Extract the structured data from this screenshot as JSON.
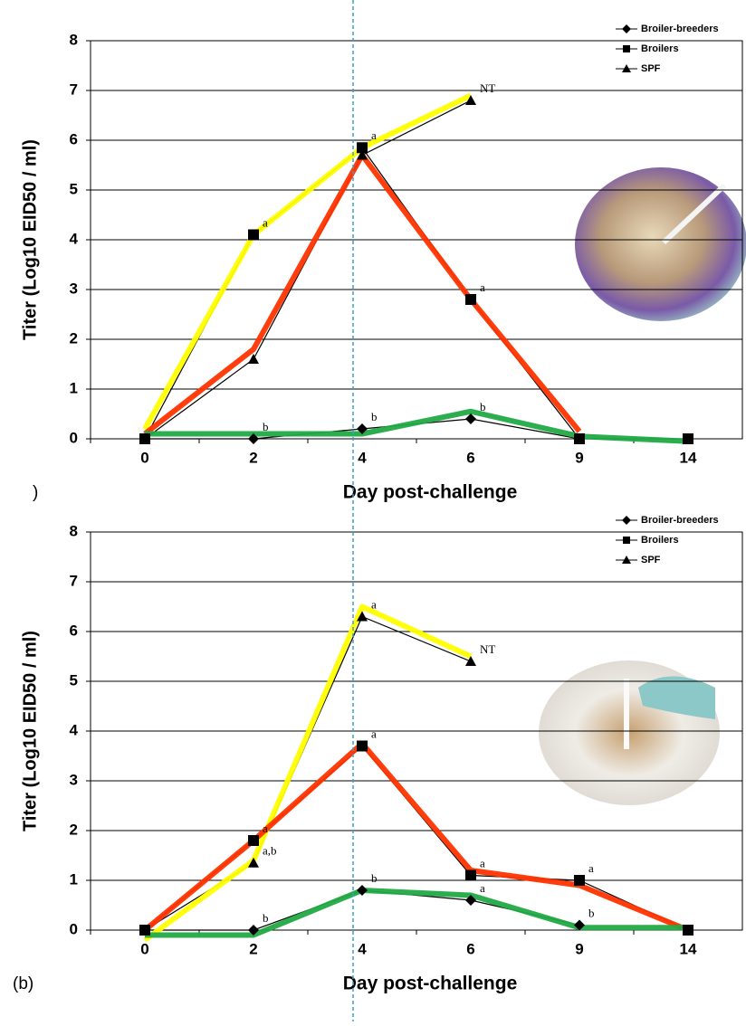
{
  "chart_data": [
    {
      "type": "line",
      "panel_label": ")",
      "xlabel": "Day post-challenge",
      "ylabel": "Titer (Log10 EID50 / ml)",
      "categories": [
        "0",
        "2",
        "4",
        "6",
        "9",
        "14"
      ],
      "ylim": [
        0,
        8
      ],
      "yticks": [
        0,
        1,
        2,
        3,
        4,
        5,
        6,
        7,
        8
      ],
      "grid": true,
      "series": [
        {
          "name": "Broiler-breeders",
          "marker": "diamond",
          "color": "#000000",
          "values": [
            0,
            0,
            0.2,
            0.4,
            0,
            null
          ],
          "point_labels": [
            null,
            "b",
            "b",
            "b",
            null,
            null
          ]
        },
        {
          "name": "Broilers",
          "marker": "square",
          "color": "#000000",
          "values": [
            0,
            4.1,
            5.85,
            2.8,
            0,
            0
          ],
          "point_labels": [
            null,
            "a",
            "a",
            "a",
            null,
            null
          ]
        },
        {
          "name": "SPF",
          "marker": "triangle",
          "color": "#000000",
          "values": [
            0,
            1.6,
            5.7,
            6.8,
            null,
            null
          ],
          "point_labels": [
            null,
            null,
            null,
            "NT",
            null,
            null
          ]
        }
      ],
      "overlays": [
        {
          "color": "#ffff00",
          "values": [
            0.2,
            4.1,
            5.85,
            6.9,
            null,
            null
          ]
        },
        {
          "color": "#ff3300",
          "values": [
            0.1,
            1.8,
            5.7,
            2.8,
            0.15,
            null
          ]
        },
        {
          "color": "#22aa44",
          "values": [
            0.1,
            0.1,
            0.1,
            0.55,
            0.05,
            -0.05
          ]
        }
      ]
    },
    {
      "type": "line",
      "panel_label": "(b)",
      "xlabel": "Day post-challenge",
      "ylabel": "Titer (Log10 EID50 / ml)",
      "categories": [
        "0",
        "2",
        "4",
        "6",
        "9",
        "14"
      ],
      "ylim": [
        0,
        8
      ],
      "yticks": [
        0,
        1,
        2,
        3,
        4,
        5,
        6,
        7,
        8
      ],
      "grid": true,
      "series": [
        {
          "name": "Broiler-breeders",
          "marker": "diamond",
          "color": "#000000",
          "values": [
            0,
            0,
            0.8,
            0.6,
            0.1,
            null
          ],
          "point_labels": [
            null,
            "b",
            "b",
            "a",
            "b",
            null
          ]
        },
        {
          "name": "Broilers",
          "marker": "square",
          "color": "#000000",
          "values": [
            0,
            1.8,
            3.7,
            1.1,
            1.0,
            0
          ],
          "point_labels": [
            null,
            "a",
            "a",
            "a",
            "a",
            null
          ]
        },
        {
          "name": "SPF",
          "marker": "triangle",
          "color": "#000000",
          "values": [
            0,
            1.35,
            6.3,
            5.4,
            null,
            null
          ],
          "point_labels": [
            null,
            "a,b",
            "a",
            "NT",
            null,
            null
          ]
        }
      ],
      "overlays": [
        {
          "color": "#ffff00",
          "values": [
            -0.2,
            1.4,
            6.5,
            5.5,
            null,
            null
          ]
        },
        {
          "color": "#ff3300",
          "values": [
            0,
            1.8,
            3.75,
            1.2,
            0.9,
            0
          ]
        },
        {
          "color": "#22aa44",
          "values": [
            -0.1,
            -0.1,
            0.8,
            0.7,
            0.05,
            0.05
          ]
        }
      ]
    }
  ]
}
